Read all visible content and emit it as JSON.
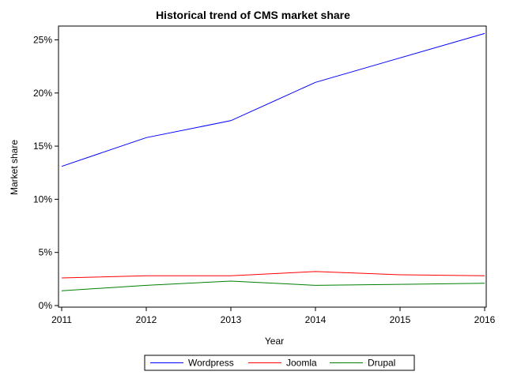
{
  "chart_data": {
    "type": "line",
    "title": "Historical trend of CMS market share",
    "xlabel": "Year",
    "ylabel": "Market share",
    "x": [
      2011,
      2012,
      2013,
      2014,
      2015,
      2016
    ],
    "x_tick_labels": [
      "2011",
      "2012",
      "2013",
      "2014",
      "2015",
      "2016"
    ],
    "ylim": [
      0,
      0.26
    ],
    "y_ticks": [
      0,
      0.05,
      0.1,
      0.15,
      0.2,
      0.25
    ],
    "y_tick_labels": [
      "0%",
      "5%",
      "10%",
      "15%",
      "20%",
      "25%"
    ],
    "grid": false,
    "legend_position": "bottom",
    "series": [
      {
        "name": "Wordpress",
        "color": "#0000ff",
        "values": [
          0.131,
          0.158,
          0.174,
          0.21,
          0.233,
          0.256
        ]
      },
      {
        "name": "Joomla",
        "color": "#ff0000",
        "values": [
          0.026,
          0.028,
          0.028,
          0.032,
          0.029,
          0.028
        ]
      },
      {
        "name": "Drupal",
        "color": "#008000",
        "values": [
          0.014,
          0.019,
          0.023,
          0.019,
          0.02,
          0.021
        ]
      }
    ]
  }
}
